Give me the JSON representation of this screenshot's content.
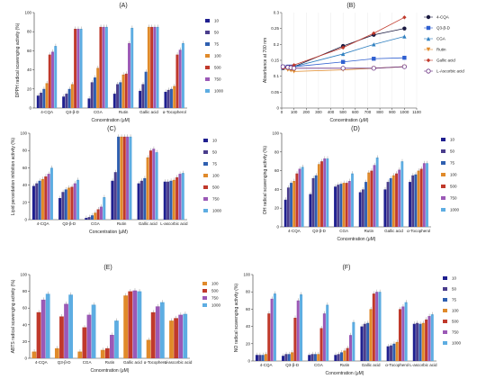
{
  "chart_data": [
    {
      "type": "bar",
      "title": "(A)",
      "ylabel": "DPPH radical scavenging activity (%)",
      "xlabel": "Concentration (μM)",
      "ylim": [
        0,
        100
      ],
      "yticks": [
        0,
        20,
        40,
        60,
        80,
        100
      ],
      "categories": [
        "4-CQA",
        "Q3-β-D",
        "CGA",
        "Rutin",
        "Gallic acid",
        "α-Tocopherol"
      ],
      "legend_position": "right",
      "series": [
        {
          "name": "10",
          "color": "#1f1f8f",
          "values": [
            13,
            12,
            10,
            15,
            18,
            17
          ]
        },
        {
          "name": "50",
          "color": "#4a3d8c",
          "values": [
            16,
            15,
            27,
            25,
            25,
            19
          ]
        },
        {
          "name": "75",
          "color": "#2f5fb0",
          "values": [
            20,
            20,
            32,
            27,
            38,
            20
          ]
        },
        {
          "name": "100",
          "color": "#e08a2a",
          "values": [
            26,
            25,
            42,
            35,
            85,
            23
          ]
        },
        {
          "name": "500",
          "color": "#c0392b",
          "values": [
            56,
            83,
            85,
            36,
            85,
            56
          ]
        },
        {
          "name": "750",
          "color": "#9b59b6",
          "values": [
            59,
            83,
            85,
            68,
            85,
            61
          ]
        },
        {
          "name": "1000",
          "color": "#5dade2",
          "values": [
            65,
            83,
            85,
            84,
            85,
            68
          ]
        }
      ]
    },
    {
      "type": "line",
      "title": "(B)",
      "ylabel": "Absorbance at 700 nm",
      "xlabel": "Concentration (μM)",
      "xlim": [
        0,
        1100
      ],
      "ylim": [
        0,
        0.3
      ],
      "xticks": [
        0,
        100,
        200,
        300,
        400,
        500,
        600,
        700,
        800,
        900,
        1000,
        1100
      ],
      "yticks": [
        0,
        0.05,
        0.1,
        0.15,
        0.2,
        0.25,
        0.3
      ],
      "x": [
        10,
        50,
        75,
        100,
        500,
        750,
        1000
      ],
      "legend_position": "right",
      "series": [
        {
          "name": "4-CQA",
          "color": "#1a1a40",
          "marker": "circle",
          "values": [
            0.13,
            0.13,
            0.13,
            0.13,
            0.195,
            0.23,
            0.25
          ]
        },
        {
          "name": "Q3-β-D",
          "color": "#2f5fd0",
          "marker": "square",
          "values": [
            0.13,
            0.13,
            0.13,
            0.13,
            0.145,
            0.155,
            0.158
          ]
        },
        {
          "name": "CGA",
          "color": "#3080c0",
          "marker": "triangle",
          "values": [
            0.125,
            0.128,
            0.13,
            0.13,
            0.17,
            0.2,
            0.225
          ]
        },
        {
          "name": "Rutin",
          "color": "#e08a2a",
          "marker": "triangle-down",
          "values": [
            0.125,
            0.12,
            0.118,
            0.115,
            0.12,
            0.125,
            0.13
          ]
        },
        {
          "name": "Gallic acid",
          "color": "#c0392b",
          "marker": "diamond",
          "values": [
            0.125,
            0.128,
            0.13,
            0.135,
            0.19,
            0.235,
            0.285
          ]
        },
        {
          "name": "L-Ascorbic acid",
          "color": "#6c3483",
          "marker": "open-circle",
          "values": [
            0.13,
            0.128,
            0.127,
            0.125,
            0.125,
            0.125,
            0.13
          ]
        }
      ]
    },
    {
      "type": "bar",
      "title": "(C)",
      "ylabel": "Lipid peroxidation inhibition activity (%)",
      "xlabel": "Concentration (μM)",
      "ylim": [
        0,
        100
      ],
      "yticks": [
        0,
        20,
        40,
        60,
        80,
        100
      ],
      "categories": [
        "4-CQA",
        "Q3-β-D",
        "CGA",
        "Rutin",
        "Gallic acid",
        "L-ascorbic acid"
      ],
      "legend_position": "right",
      "series": [
        {
          "name": "10",
          "color": "#1f1f8f",
          "values": [
            39,
            25,
            2,
            45,
            42,
            44
          ]
        },
        {
          "name": "50",
          "color": "#4a3d8c",
          "values": [
            42,
            32,
            3,
            55,
            45,
            44
          ]
        },
        {
          "name": "75",
          "color": "#2f5fb0",
          "values": [
            45,
            35,
            5,
            96,
            48,
            45
          ]
        },
        {
          "name": "100",
          "color": "#e08a2a",
          "values": [
            47,
            37,
            8,
            96,
            72,
            46
          ]
        },
        {
          "name": "500",
          "color": "#c0392b",
          "values": [
            50,
            38,
            12,
            96,
            80,
            49
          ]
        },
        {
          "name": "750",
          "color": "#9b59b6",
          "values": [
            53,
            42,
            15,
            96,
            82,
            53
          ]
        },
        {
          "name": "1000",
          "color": "#5dade2",
          "values": [
            60,
            46,
            26,
            96,
            78,
            54
          ]
        }
      ]
    },
    {
      "type": "bar",
      "title": "(D)",
      "ylabel": "OH radical scavenging activity (%)",
      "xlabel": "Concentration (μM)",
      "ylim": [
        0,
        100
      ],
      "yticks": [
        0,
        20,
        40,
        60,
        80,
        100
      ],
      "categories": [
        "4-CQA",
        "Q3-β-D",
        "CGA",
        "Rutin",
        "Gallic acid",
        "α-Tocopherol"
      ],
      "legend_position": "right",
      "series": [
        {
          "name": "10",
          "color": "#1f1f8f",
          "values": [
            29,
            35,
            43,
            37,
            40,
            48
          ]
        },
        {
          "name": "50",
          "color": "#4a3d8c",
          "values": [
            42,
            52,
            45,
            40,
            48,
            55
          ]
        },
        {
          "name": "75",
          "color": "#2f5fb0",
          "values": [
            47,
            55,
            46,
            48,
            52,
            56
          ]
        },
        {
          "name": "100",
          "color": "#e08a2a",
          "values": [
            49,
            67,
            47,
            58,
            55,
            60
          ]
        },
        {
          "name": "500",
          "color": "#c0392b",
          "values": [
            57,
            70,
            47,
            60,
            57,
            62
          ]
        },
        {
          "name": "750",
          "color": "#9b59b6",
          "values": [
            62,
            73,
            49,
            66,
            61,
            68
          ]
        },
        {
          "name": "1000",
          "color": "#5dade2",
          "values": [
            64,
            73,
            57,
            74,
            70,
            68
          ]
        }
      ]
    },
    {
      "type": "bar",
      "title": "(E)",
      "ylabel": "ABTS radical scavenging activity (%)",
      "xlabel": "Concentration (μM)",
      "ylim": [
        0,
        100
      ],
      "yticks": [
        0,
        20,
        40,
        60,
        80,
        100
      ],
      "categories": [
        "4-CQA",
        "Q3-β-D",
        "CGA",
        "Rutin",
        "Gallic acid",
        "α-Tocopherol",
        "L-ascorbic acid"
      ],
      "legend_position": "right",
      "series": [
        {
          "name": "100",
          "color": "#e08a2a",
          "values": [
            8,
            12,
            8,
            10,
            75,
            22,
            45
          ]
        },
        {
          "name": "500",
          "color": "#c0392b",
          "values": [
            55,
            50,
            37,
            12,
            80,
            55,
            48
          ]
        },
        {
          "name": "750",
          "color": "#9b59b6",
          "values": [
            70,
            65,
            52,
            28,
            81,
            62,
            52
          ]
        },
        {
          "name": "1000",
          "color": "#5dade2",
          "values": [
            77,
            76,
            64,
            45,
            80,
            67,
            53
          ]
        }
      ]
    },
    {
      "type": "bar",
      "title": "(F)",
      "ylabel": "NO radical scavenging activity (%)",
      "xlabel": "Concentration (μM)",
      "ylim": [
        0,
        100
      ],
      "yticks": [
        0,
        20,
        40,
        60,
        80,
        100
      ],
      "categories": [
        "4-CQA",
        "Q3-β-D",
        "CGA",
        "Rutin",
        "Gallic acid",
        "α-Tocopherol",
        "L-ascorbic acid"
      ],
      "legend_position": "right",
      "series": [
        {
          "name": "10",
          "color": "#1f1f8f",
          "values": [
            7,
            6,
            7,
            7,
            40,
            17,
            43
          ]
        },
        {
          "name": "50",
          "color": "#4a3d8c",
          "values": [
            7,
            8,
            8,
            8,
            43,
            18,
            44
          ]
        },
        {
          "name": "75",
          "color": "#2f5fb0",
          "values": [
            7,
            8,
            8,
            10,
            44,
            20,
            43
          ]
        },
        {
          "name": "100",
          "color": "#e08a2a",
          "values": [
            8,
            10,
            8,
            12,
            60,
            22,
            44
          ]
        },
        {
          "name": "500",
          "color": "#c0392b",
          "values": [
            55,
            50,
            38,
            15,
            78,
            60,
            48
          ]
        },
        {
          "name": "750",
          "color": "#9b59b6",
          "values": [
            72,
            70,
            55,
            30,
            80,
            63,
            52
          ]
        },
        {
          "name": "1000",
          "color": "#5dade2",
          "values": [
            78,
            77,
            65,
            45,
            80,
            68,
            54
          ]
        }
      ]
    }
  ]
}
